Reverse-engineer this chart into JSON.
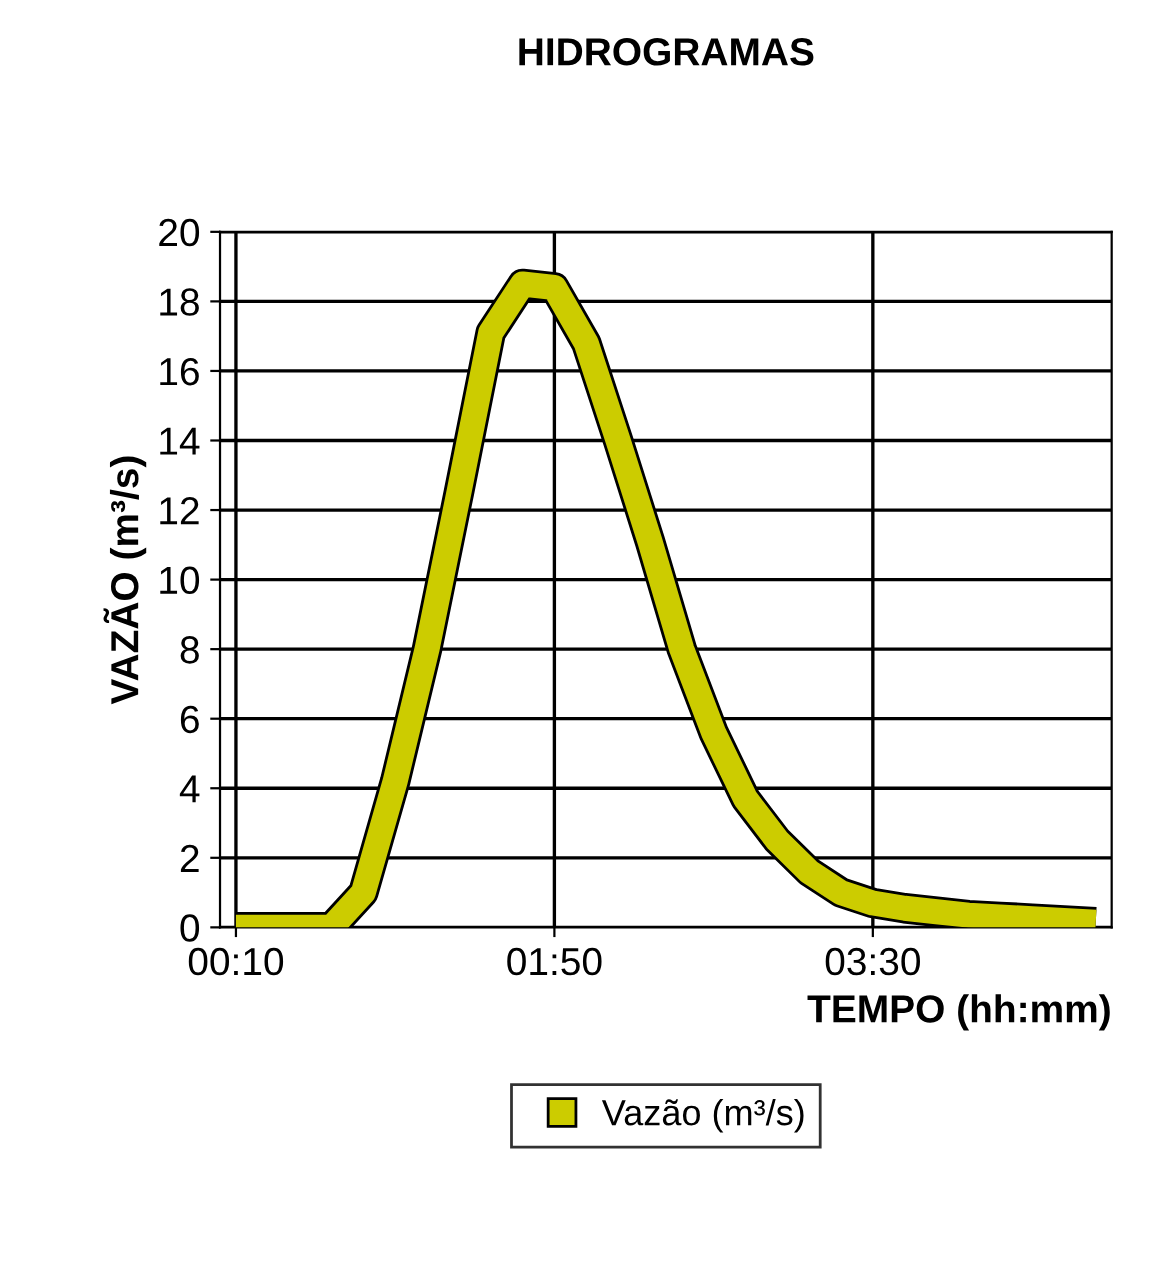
{
  "chart_data": {
    "type": "line",
    "title": "HIDROGRAMAS",
    "xlabel": "TEMPO (hh:mm)",
    "ylabel": "VAZÃO (m³/s)",
    "categories": [
      "00:10",
      null,
      null,
      null,
      null,
      null,
      null,
      null,
      null,
      null,
      "01:50",
      null,
      null,
      null,
      null,
      null,
      null,
      null,
      null,
      null,
      "03:30",
      null,
      null,
      null,
      null,
      null,
      null,
      null
    ],
    "series": [
      {
        "name": "Vazão (m³/s)",
        "color": "#cccc00",
        "values": [
          0,
          0,
          0,
          0,
          1.0,
          4.2,
          8.0,
          12.5,
          17.1,
          18.5,
          18.4,
          16.8,
          14.0,
          11.1,
          8.0,
          5.6,
          3.7,
          2.5,
          1.6,
          1.0,
          0.7,
          0.55,
          0.45,
          0.35,
          0.3,
          0.25,
          0.2,
          0.15
        ]
      }
    ],
    "ylim": [
      0,
      20
    ],
    "yticks": [
      0,
      2,
      4,
      6,
      8,
      10,
      12,
      14,
      16,
      18,
      20
    ],
    "grid": true,
    "legend": "bottom"
  }
}
